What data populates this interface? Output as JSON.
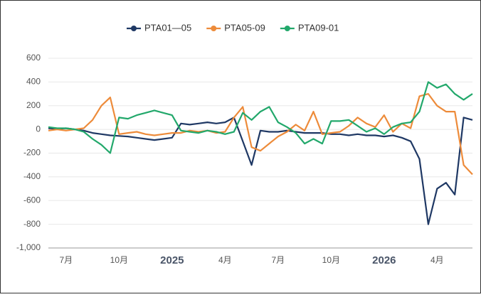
{
  "chart_data": {
    "type": "line",
    "categories": [
      null,
      null,
      "7月",
      null,
      null,
      null,
      null,
      null,
      "10月",
      null,
      null,
      null,
      null,
      null,
      "2025",
      null,
      null,
      null,
      null,
      null,
      "4月",
      null,
      null,
      null,
      null,
      null,
      "7月",
      null,
      null,
      null,
      null,
      null,
      "10月",
      null,
      null,
      null,
      null,
      null,
      "2026",
      null,
      null,
      null,
      null,
      null,
      "4月",
      null,
      null,
      null,
      null
    ],
    "series": [
      {
        "name": "PTA01—05",
        "color": "#1f3864",
        "values": [
          10,
          5,
          10,
          0,
          -10,
          -30,
          -40,
          -50,
          -55,
          -60,
          -70,
          -80,
          -90,
          -80,
          -70,
          50,
          40,
          50,
          60,
          50,
          60,
          100,
          -100,
          -300,
          -10,
          -20,
          -20,
          -10,
          -20,
          -30,
          -30,
          -30,
          -40,
          -40,
          -50,
          -40,
          -50,
          -50,
          -60,
          -50,
          -70,
          -100,
          -250,
          -800,
          -500,
          -450,
          -550,
          100,
          80
        ]
      },
      {
        "name": "PTA05-09",
        "color": "#ed8b3a",
        "values": [
          -10,
          0,
          -10,
          0,
          10,
          80,
          200,
          270,
          -40,
          -30,
          -20,
          -40,
          -50,
          -40,
          -30,
          -30,
          -10,
          -20,
          -10,
          -30,
          -20,
          100,
          190,
          -150,
          -180,
          -120,
          -60,
          -20,
          40,
          -10,
          150,
          -40,
          -30,
          -20,
          30,
          100,
          50,
          20,
          120,
          -20,
          50,
          10,
          280,
          300,
          200,
          150,
          150,
          -300,
          -380
        ]
      },
      {
        "name": "PTA09-01",
        "color": "#22a86b",
        "values": [
          20,
          10,
          10,
          0,
          -20,
          -80,
          -130,
          -200,
          100,
          90,
          120,
          140,
          160,
          140,
          120,
          -10,
          -20,
          -30,
          -10,
          -20,
          -40,
          -20,
          140,
          80,
          150,
          190,
          60,
          20,
          -30,
          -120,
          -80,
          -120,
          70,
          70,
          80,
          30,
          -20,
          10,
          -40,
          20,
          50,
          60,
          150,
          400,
          350,
          380,
          300,
          250,
          300
        ]
      }
    ],
    "ylim": [
      -1000,
      600
    ],
    "yticks": [
      {
        "value": -1000,
        "label": "-1,000"
      },
      -800,
      -600,
      -400,
      -200,
      0,
      200,
      400,
      600
    ],
    "grid": true
  }
}
